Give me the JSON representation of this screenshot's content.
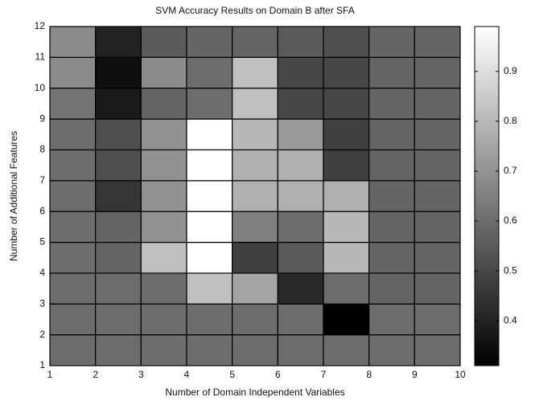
{
  "chart_data": {
    "type": "heatmap",
    "title": "SVM Accuracy Results on Domain B after SFA",
    "x_label": "Number of Domain Independent Variables",
    "y_label": "Number of Additional Features",
    "xlim": [
      1,
      10
    ],
    "xticks": [
      1,
      2,
      3,
      4,
      5,
      6,
      7,
      8,
      9,
      10
    ],
    "ylim": [
      1,
      12
    ],
    "yticks": [
      1,
      2,
      3,
      4,
      5,
      6,
      7,
      8,
      9,
      10,
      11,
      12
    ],
    "colormap": "gray",
    "colorbar": true,
    "clim": [
      0.31,
      0.99
    ],
    "cticks": [
      0.4,
      0.5,
      0.6,
      0.7,
      0.8,
      0.9
    ],
    "values": [
      [
        0.6,
        0.6,
        0.6,
        0.6,
        0.6,
        0.6,
        0.6,
        0.6,
        0.6
      ],
      [
        0.6,
        0.6,
        0.6,
        0.6,
        0.6,
        0.6,
        0.31,
        0.6,
        0.6
      ],
      [
        0.6,
        0.6,
        0.6,
        0.82,
        0.75,
        0.42,
        0.6,
        0.58,
        0.58
      ],
      [
        0.6,
        0.58,
        0.82,
        0.99,
        0.48,
        0.55,
        0.8,
        0.58,
        0.58
      ],
      [
        0.6,
        0.58,
        0.7,
        0.99,
        0.65,
        0.6,
        0.8,
        0.58,
        0.58
      ],
      [
        0.6,
        0.45,
        0.7,
        0.99,
        0.78,
        0.78,
        0.78,
        0.58,
        0.58
      ],
      [
        0.6,
        0.52,
        0.7,
        0.99,
        0.78,
        0.78,
        0.48,
        0.58,
        0.58
      ],
      [
        0.6,
        0.52,
        0.7,
        0.99,
        0.8,
        0.72,
        0.48,
        0.58,
        0.58
      ],
      [
        0.62,
        0.38,
        0.58,
        0.6,
        0.82,
        0.5,
        0.5,
        0.58,
        0.58
      ],
      [
        0.68,
        0.35,
        0.68,
        0.6,
        0.82,
        0.5,
        0.5,
        0.58,
        0.58
      ],
      [
        0.68,
        0.4,
        0.55,
        0.58,
        0.58,
        0.55,
        0.52,
        0.58,
        0.58
      ]
    ]
  }
}
